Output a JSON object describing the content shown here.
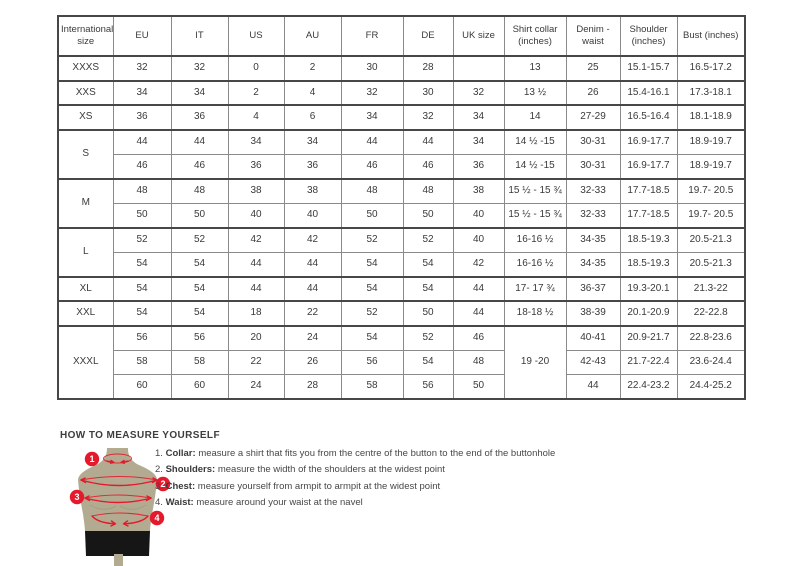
{
  "colors": {
    "accent_red": "#e4192b",
    "mannequin": "#b3ab91",
    "mannequin_shade": "#a59d81",
    "shorts": "#161616",
    "border": "#8a8a8a",
    "border_strong": "#474747",
    "text": "#3a3a3a"
  },
  "table": {
    "headers": [
      "International size",
      "EU",
      "IT",
      "US",
      "AU",
      "FR",
      "DE",
      "UK size",
      "Shirt collar (inches)",
      "Denim - waist",
      "Shoulder (inches)",
      "Bust (inches)"
    ],
    "groups": [
      {
        "size": "XXXS",
        "merge_collar": false,
        "rows": [
          [
            "32",
            "32",
            "0",
            "2",
            "30",
            "28",
            "",
            "13",
            "25",
            "15.1-15.7",
            "16.5-17.2"
          ]
        ]
      },
      {
        "size": "XXS",
        "merge_collar": false,
        "rows": [
          [
            "34",
            "34",
            "2",
            "4",
            "32",
            "30",
            "32",
            "13 ½",
            "26",
            "15.4-16.1",
            "17.3-18.1"
          ]
        ]
      },
      {
        "size": "XS",
        "merge_collar": false,
        "rows": [
          [
            "36",
            "36",
            "4",
            "6",
            "34",
            "32",
            "34",
            "14",
            "27-29",
            "16.5-16.4",
            "18.1-18.9"
          ]
        ]
      },
      {
        "size": "S",
        "merge_collar": false,
        "rows": [
          [
            "44",
            "44",
            "34",
            "34",
            "44",
            "44",
            "34",
            "14 ½ -15",
            "30-31",
            "16.9-17.7",
            "18.9-19.7"
          ],
          [
            "46",
            "46",
            "36",
            "36",
            "46",
            "46",
            "36",
            "14 ½ -15",
            "30-31",
            "16.9-17.7",
            "18.9-19.7"
          ]
        ]
      },
      {
        "size": "M",
        "merge_collar": false,
        "rows": [
          [
            "48",
            "48",
            "38",
            "38",
            "48",
            "48",
            "38",
            "15 ½ - 15 ¾",
            "32-33",
            "17.7-18.5",
            "19.7- 20.5"
          ],
          [
            "50",
            "50",
            "40",
            "40",
            "50",
            "50",
            "40",
            "15 ½ - 15 ¾",
            "32-33",
            "17.7-18.5",
            "19.7- 20.5"
          ]
        ]
      },
      {
        "size": "L",
        "merge_collar": false,
        "rows": [
          [
            "52",
            "52",
            "42",
            "42",
            "52",
            "52",
            "40",
            "16-16 ½",
            "34-35",
            "18.5-19.3",
            "20.5-21.3"
          ],
          [
            "54",
            "54",
            "44",
            "44",
            "54",
            "54",
            "42",
            "16-16 ½",
            "34-35",
            "18.5-19.3",
            "20.5-21.3"
          ]
        ]
      },
      {
        "size": "XL",
        "merge_collar": false,
        "rows": [
          [
            "54",
            "54",
            "44",
            "44",
            "54",
            "54",
            "44",
            "17- 17 ¾",
            "36-37",
            "19.3-20.1",
            "21.3-22"
          ]
        ]
      },
      {
        "size": "XXL",
        "merge_collar": false,
        "rows": [
          [
            "54",
            "54",
            "18",
            "22",
            "52",
            "50",
            "44",
            "18-18 ½",
            "38-39",
            "20.1-20.9",
            "22-22.8"
          ]
        ]
      },
      {
        "size": "XXXL",
        "merge_collar": true,
        "rows": [
          [
            "56",
            "56",
            "20",
            "24",
            "54",
            "52",
            "46",
            "19 -20",
            "40-41",
            "20.9-21.7",
            "22.8-23.6"
          ],
          [
            "58",
            "58",
            "22",
            "26",
            "56",
            "54",
            "48",
            "19 -20",
            "42-43",
            "21.7-22.4",
            "23.6-24.4"
          ],
          [
            "60",
            "60",
            "24",
            "28",
            "58",
            "56",
            "50",
            "19 -20",
            "44",
            "22.4-23.2",
            "24.4-25.2"
          ]
        ]
      }
    ]
  },
  "measure": {
    "title": "HOW TO MEASURE YOURSELF",
    "steps": [
      {
        "badge": "1",
        "num": "1.",
        "label": "Collar:",
        "text": "measure a shirt that fits you from the centre of the button to the end of the buttonhole"
      },
      {
        "badge": "2",
        "num": "2.",
        "label": "Shoulders:",
        "text": "measure the width of the shoulders at the widest point"
      },
      {
        "badge": "3",
        "num": "3.",
        "label": "Chest:",
        "text": "measure yourself from armpit to armpit at the widest point"
      },
      {
        "badge": "4",
        "num": "4.",
        "label": "Waist:",
        "text": "measure around your waist at the navel"
      }
    ]
  }
}
